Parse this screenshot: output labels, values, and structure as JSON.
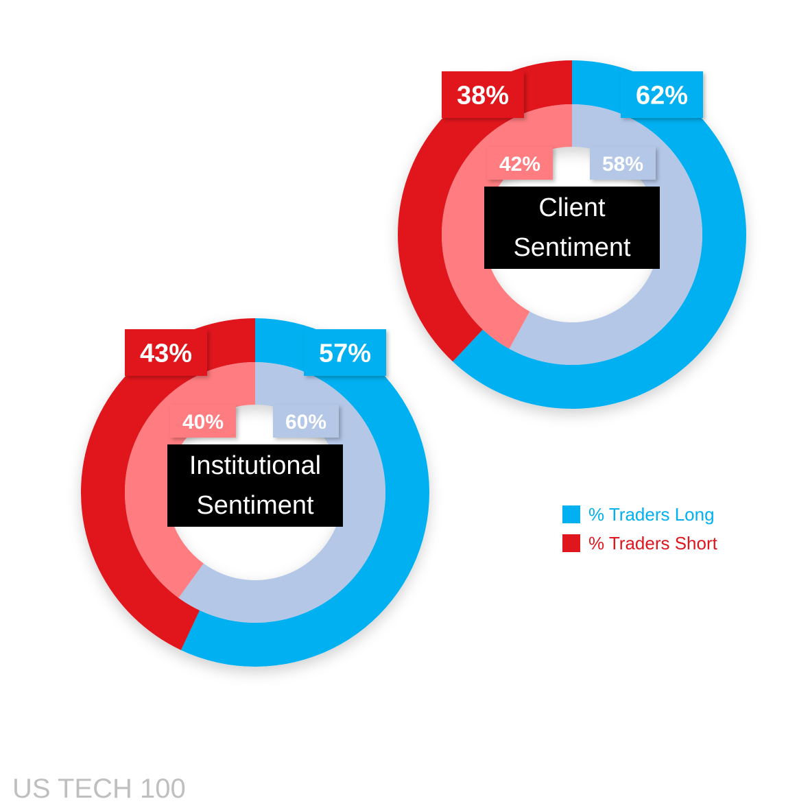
{
  "chart_data": [
    {
      "type": "donut",
      "title": "Client Sentiment",
      "categories": [
        "% Traders Long",
        "% Traders Short"
      ],
      "series": [
        {
          "values": [
            62,
            38
          ],
          "value_labels": [
            "62%",
            "38%"
          ],
          "colors": [
            "#00b0f0",
            "#e0161e"
          ]
        },
        {
          "values": [
            58,
            42
          ],
          "value_labels": [
            "58%",
            "42%"
          ],
          "colors": [
            "#b4c7e7",
            "#ff7c80"
          ]
        }
      ]
    },
    {
      "type": "donut",
      "title": "Institutional Sentiment",
      "categories": [
        "% Traders Long",
        "% Traders Short"
      ],
      "series": [
        {
          "values": [
            57,
            43
          ],
          "value_labels": [
            "57%",
            "43%"
          ],
          "colors": [
            "#00b0f0",
            "#e0161e"
          ]
        },
        {
          "values": [
            60,
            40
          ],
          "value_labels": [
            "60%",
            "40%"
          ],
          "colors": [
            "#b4c7e7",
            "#ff7c80"
          ]
        }
      ]
    }
  ],
  "caption": "US TECH 100"
}
